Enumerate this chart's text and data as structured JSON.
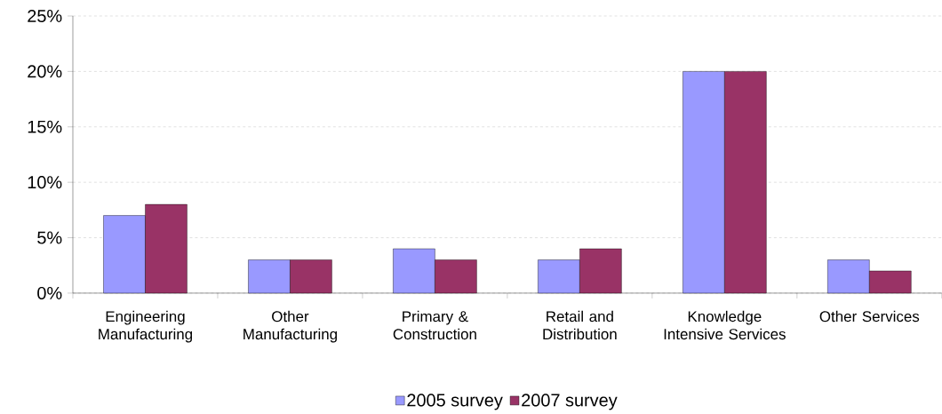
{
  "chart_data": {
    "type": "bar",
    "categories": [
      "Engineering Manufacturing",
      "Other Manufacturing",
      "Primary & Construction",
      "Retail and Distribution",
      "Knowledge Intensive Services",
      "Other Services"
    ],
    "series": [
      {
        "name": "2005 survey",
        "color": "#9999ff",
        "values": [
          7,
          3,
          4,
          3,
          20,
          3
        ]
      },
      {
        "name": "2007 survey",
        "color": "#993366",
        "values": [
          8,
          3,
          3,
          4,
          20,
          2
        ]
      }
    ],
    "ylim": [
      0,
      25
    ],
    "yticks": [
      {
        "value": 0,
        "label": "0%"
      },
      {
        "value": 5,
        "label": "5%"
      },
      {
        "value": 10,
        "label": "10%"
      },
      {
        "value": 15,
        "label": "15%"
      },
      {
        "value": 20,
        "label": "20%"
      },
      {
        "value": 25,
        "label": "25%"
      }
    ],
    "grid": "y",
    "legend": "bottom"
  }
}
